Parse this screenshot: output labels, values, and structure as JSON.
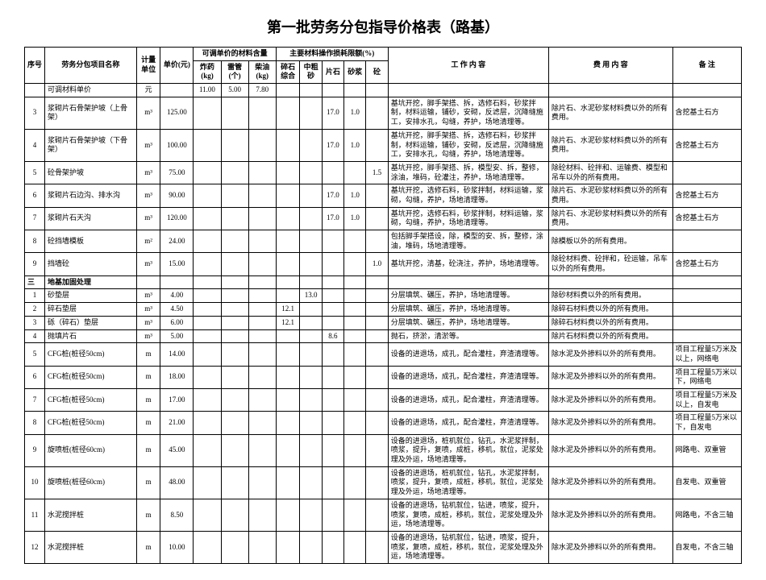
{
  "title": "第一批劳务分包指导价格表（路基）",
  "headers": {
    "seq": "序号",
    "project_name": "劳务分包项目名称",
    "unit": "计量单位",
    "price": "单价(元)",
    "material_group": "可调单价的材料含量",
    "material_cols": [
      "炸药(kg)",
      "雷管(个)",
      "柴油(kg)"
    ],
    "loss_group": "主要材料操作损耗限额(%)",
    "loss_cols": [
      "碎石综合",
      "中粗砂",
      "片石",
      "砂浆",
      "砼"
    ],
    "work": "工 作 内 容",
    "cost": "费 用 内 容",
    "note": "备  注"
  },
  "material_price_row": {
    "label": "可调材料单价",
    "unit": "元",
    "values": [
      "11.00",
      "5.00",
      "7.80"
    ]
  },
  "section": "地基加固处理",
  "rows": [
    {
      "seq": "3",
      "name": "浆砌片石骨架护坡（上骨架）",
      "unit": "m³",
      "price": "125.00",
      "m": [
        "",
        "",
        ""
      ],
      "l": [
        "",
        "",
        "17.0",
        "1.0",
        ""
      ],
      "work": "基坑开挖，脚手架搭、拆，选修石料，砂浆拌制，材料运输，铺砂，安砌，反滤层，沉降缝施工，安排水孔，勾缝，养护，场地清理等。",
      "cost": "除片石、水泥砂浆材料费以外的所有费用。",
      "note": "含挖基土石方"
    },
    {
      "seq": "4",
      "name": "浆砌片石骨架护坡（下骨架）",
      "unit": "m³",
      "price": "100.00",
      "m": [
        "",
        "",
        ""
      ],
      "l": [
        "",
        "",
        "17.0",
        "1.0",
        ""
      ],
      "work": "基坑开挖，脚手架搭、拆，选修石料，砂浆拌制，材料运输，铺砂，安砌，反滤层，沉降缝施工，安排水孔，勾缝，养护，场地清理等。",
      "cost": "除片石、水泥砂浆材料费以外的所有费用。",
      "note": "含挖基土石方"
    },
    {
      "seq": "5",
      "name": "砼骨架护坡",
      "unit": "m³",
      "price": "75.00",
      "m": [
        "",
        "",
        ""
      ],
      "l": [
        "",
        "",
        "",
        "",
        "1.5"
      ],
      "work": "基坑开挖，脚手架搭、拆，模型安、拆，整修，涂油，堆码，砼灌注，养护，场地清理等。",
      "cost": "除砼材料、砼拌和、运输费、模型和吊车以外的所有费用。",
      "note": ""
    },
    {
      "seq": "6",
      "name": "浆砌片石边沟、排水沟",
      "unit": "m³",
      "price": "90.00",
      "m": [
        "",
        "",
        ""
      ],
      "l": [
        "",
        "",
        "17.0",
        "1.0",
        ""
      ],
      "work": "基坑开挖，选修石料，砂浆拌制，材料运输，浆砌，勾缝，养护，场地清理等。",
      "cost": "除片石、水泥砂浆材料费以外的所有费用。",
      "note": "含挖基土石方"
    },
    {
      "seq": "7",
      "name": "浆砌片石天沟",
      "unit": "m³",
      "price": "120.00",
      "m": [
        "",
        "",
        ""
      ],
      "l": [
        "",
        "",
        "17.0",
        "1.0",
        ""
      ],
      "work": "基坑开挖，选修石料，砂浆拌制，材料运输，浆砌，勾缝，养护，场地清理等。",
      "cost": "除片石、水泥砂浆材料费以外的所有费用。",
      "note": "含挖基土石方"
    },
    {
      "seq": "8",
      "name": "砼挡墙模板",
      "unit": "m²",
      "price": "24.00",
      "m": [
        "",
        "",
        ""
      ],
      "l": [
        "",
        "",
        "",
        "",
        ""
      ],
      "work": "包括脚手架搭设，除，模型的安、拆，整修，涂油，堆码，场地清理等。",
      "cost": "除模板以外的所有费用。",
      "note": ""
    },
    {
      "seq": "9",
      "name": "挡墙砼",
      "unit": "m³",
      "price": "15.00",
      "m": [
        "",
        "",
        ""
      ],
      "l": [
        "",
        "",
        "",
        "",
        "1.0"
      ],
      "work": "基坑开挖，清基，砼浇注，养护，场地清理等。",
      "cost": "除砼材料费、砼拌和，砼运输，吊车以外的所有费用。",
      "note": "含挖基土石方"
    }
  ],
  "rows2": [
    {
      "seq": "1",
      "name": "砂垫层",
      "unit": "m³",
      "price": "4.00",
      "m": [
        "",
        "",
        ""
      ],
      "l": [
        "",
        "13.0",
        "",
        "",
        ""
      ],
      "work": "分层填筑、碾压，养护，场地清理等。",
      "cost": "除砂材料费以外的所有费用。",
      "note": ""
    },
    {
      "seq": "2",
      "name": "碎石垫层",
      "unit": "m³",
      "price": "4.50",
      "m": [
        "",
        "",
        ""
      ],
      "l": [
        "12.1",
        "",
        "",
        "",
        ""
      ],
      "work": "分层填筑、碾压，养护，场地清理等。",
      "cost": "除碎石材料费以外的所有费用。",
      "note": ""
    },
    {
      "seq": "3",
      "name": "砾（碎石）垫层",
      "unit": "m³",
      "price": "6.00",
      "m": [
        "",
        "",
        ""
      ],
      "l": [
        "12.1",
        "",
        "",
        "",
        ""
      ],
      "work": "分层填筑、碾压，养护，场地清理等。",
      "cost": "除碎石材料费以外的所有费用。",
      "note": ""
    },
    {
      "seq": "4",
      "name": "抛填片石",
      "unit": "m³",
      "price": "5.00",
      "m": [
        "",
        "",
        ""
      ],
      "l": [
        "",
        "",
        "8.6",
        "",
        ""
      ],
      "work": "抛石，挤淤，清淤等。",
      "cost": "除片石材料费以外的所有费用。",
      "note": ""
    },
    {
      "seq": "5",
      "name": "CFG桩(桩径50cm)",
      "unit": "m",
      "price": "14.00",
      "m": [
        "",
        "",
        ""
      ],
      "l": [
        "",
        "",
        "",
        "",
        ""
      ],
      "work": "设备的进退场，成孔，配合灌柱，弃渣清理等。",
      "cost": "除水泥及外掺料以外的所有费用。",
      "note": "项目工程量5万米及以上，网络电"
    },
    {
      "seq": "6",
      "name": "CFG桩(桩径50cm)",
      "unit": "m",
      "price": "18.00",
      "m": [
        "",
        "",
        ""
      ],
      "l": [
        "",
        "",
        "",
        "",
        ""
      ],
      "work": "设备的进退场，成孔，配合灌柱，弃渣清理等。",
      "cost": "除水泥及外掺料以外的所有费用。",
      "note": "项目工程量5万米以下，网络电"
    },
    {
      "seq": "7",
      "name": "CFG桩(桩径50cm)",
      "unit": "m",
      "price": "17.00",
      "m": [
        "",
        "",
        ""
      ],
      "l": [
        "",
        "",
        "",
        "",
        ""
      ],
      "work": "设备的进退场，成孔，配合灌柱，弃渣清理等。",
      "cost": "除水泥及外掺料以外的所有费用。",
      "note": "项目工程量5万米及以上，自发电"
    },
    {
      "seq": "8",
      "name": "CFG桩(桩径50cm)",
      "unit": "m",
      "price": "21.00",
      "m": [
        "",
        "",
        ""
      ],
      "l": [
        "",
        "",
        "",
        "",
        ""
      ],
      "work": "设备的进退场，成孔，配合灌柱，弃渣清理等。",
      "cost": "除水泥及外掺料以外的所有费用。",
      "note": "项目工程量5万米以下，自发电"
    },
    {
      "seq": "9",
      "name": "旋喷桩(桩径60cm)",
      "unit": "m",
      "price": "45.00",
      "m": [
        "",
        "",
        ""
      ],
      "l": [
        "",
        "",
        "",
        "",
        ""
      ],
      "work": "设备的进退场，桩机就位，钻孔，水泥浆拌制，喷浆，提升，复喷，成桩，移机，就位，泥浆处理及外运，场地清理等。",
      "cost": "除水泥及外掺料以外的所有费用。",
      "note": "网路电、双重管"
    },
    {
      "seq": "10",
      "name": "旋喷桩(桩径60cm)",
      "unit": "m",
      "price": "48.00",
      "m": [
        "",
        "",
        ""
      ],
      "l": [
        "",
        "",
        "",
        "",
        ""
      ],
      "work": "设备的进退场，桩机就位，钻孔，水泥浆拌制，喷浆，提升，复喷，成桩，移机，就位，泥浆处理及外运，场地清理等。",
      "cost": "除水泥及外掺料以外的所有费用。",
      "note": "自发电、双重管"
    },
    {
      "seq": "11",
      "name": "水泥搅拌桩",
      "unit": "m",
      "price": "8.50",
      "m": [
        "",
        "",
        ""
      ],
      "l": [
        "",
        "",
        "",
        "",
        ""
      ],
      "work": "设备的进退场，钻机就位，钻进，喷浆，提升，喷浆，复喷，成桩，移机，就位，泥浆处理及外运，场地清理等。",
      "cost": "除水泥及外掺料以外的所有费用。",
      "note": "网路电，不含三轴"
    },
    {
      "seq": "12",
      "name": "水泥搅拌桩",
      "unit": "m",
      "price": "10.00",
      "m": [
        "",
        "",
        ""
      ],
      "l": [
        "",
        "",
        "",
        "",
        ""
      ],
      "work": "设备的进退场，钻机就位，钻进，喷浆，提升，喷浆，复喷，成桩，移机，就位，泥浆处理及外运，场地清理等。",
      "cost": "除水泥及外掺料以外的所有费用。",
      "note": "自发电，不含三轴"
    }
  ]
}
